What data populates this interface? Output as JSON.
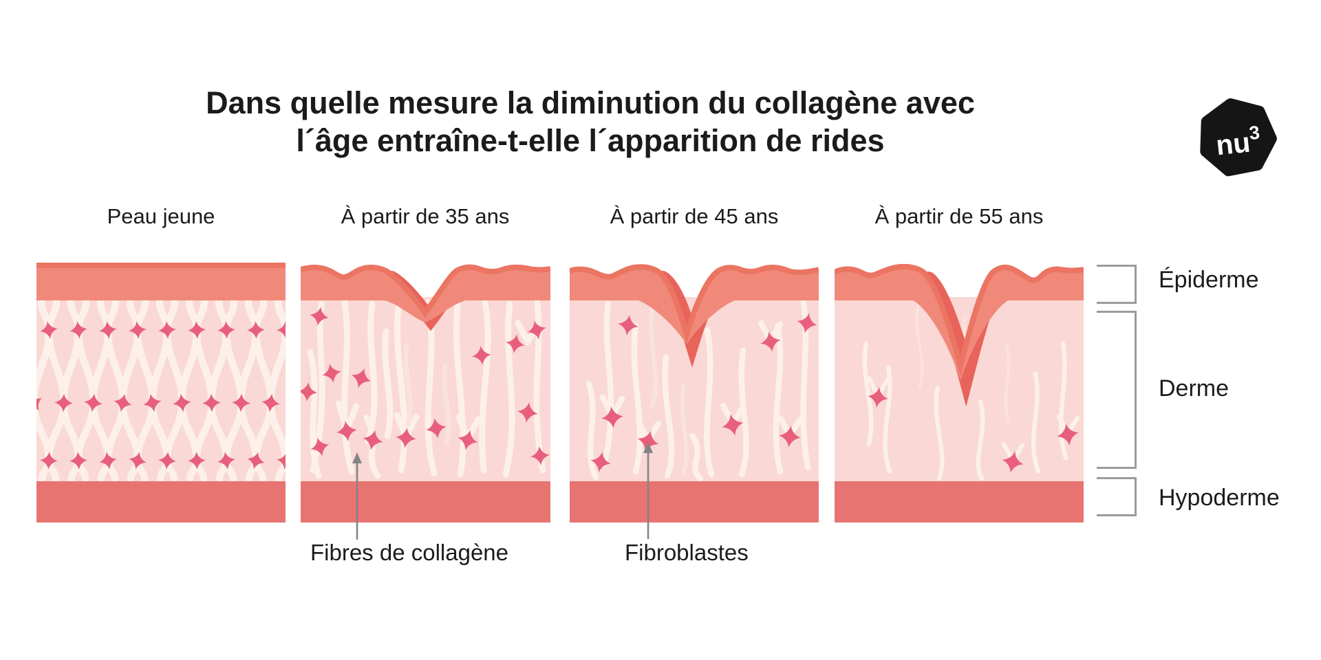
{
  "title": {
    "line1": "Dans quelle mesure la diminution du collagène avec",
    "line2": "l´âge entraîne-t-elle l´apparition de rides"
  },
  "logo": {
    "text": "nu",
    "sup": "3"
  },
  "panels": [
    {
      "label": "Peau jeune"
    },
    {
      "label": "À partir de 35 ans"
    },
    {
      "label": "À partir de 45 ans"
    },
    {
      "label": "À partir de 55 ans"
    }
  ],
  "layers": [
    {
      "label": "Épiderme"
    },
    {
      "label": "Derme"
    },
    {
      "label": "Hypoderme"
    }
  ],
  "annotations": [
    {
      "label": "Fibres de collagène"
    },
    {
      "label": "Fibroblastes"
    }
  ],
  "palette": {
    "epidermis": "#F0897A",
    "epidermis_top": "#EB7462",
    "epidermis_dark": "#E8635A",
    "dermis": "#F9D8D5",
    "collagen": "#FCF0E9",
    "collagen_light": "#FAE3DC",
    "fibroblast": "#E85F7B",
    "hypodermis": "#E87472",
    "text": "#1B1B1B",
    "arrow_gray": "#848484",
    "bracket_gray": "#9B9B9B",
    "logo_black": "#151515",
    "background": "#FFFFFF"
  }
}
